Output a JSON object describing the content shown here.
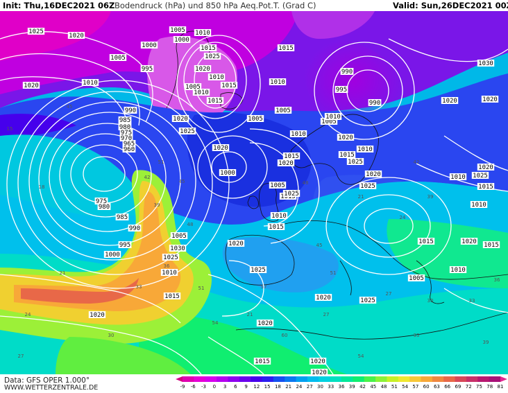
{
  "header": {
    "init": "Init: Thu,16DEC2021 06Z",
    "title": "Bodendruck (hPa) und 850 hPa Aeq.Pot.T. (Grad C)",
    "valid": "Valid: Sun,26DEC2021 00Z"
  },
  "footer": {
    "data_source": "Data: GFS OPER 1.000°",
    "website": "WWW.WETTERZENTRALE.DE"
  },
  "legend": {
    "ticks": [
      "-9",
      "-6",
      "-3",
      "0",
      "3",
      "6",
      "9",
      "12",
      "15",
      "18",
      "21",
      "24",
      "27",
      "30",
      "33",
      "36",
      "39",
      "42",
      "45",
      "48",
      "51",
      "54",
      "57",
      "60",
      "63",
      "66",
      "69",
      "72",
      "75",
      "78",
      "81"
    ],
    "colors": [
      "#d3007f",
      "#e000b0",
      "#e600d6",
      "#d600ee",
      "#b400f0",
      "#8e00f0",
      "#6a00ee",
      "#4600ec",
      "#2a1ef0",
      "#1450f0",
      "#0a78f0",
      "#00a0f0",
      "#00bcee",
      "#00d2e0",
      "#00e0c0",
      "#00e89a",
      "#10ee70",
      "#4af24a",
      "#8cf238",
      "#c8f028",
      "#f0e830",
      "#f8c838",
      "#f8a838",
      "#f08840",
      "#e86848",
      "#d84858",
      "#c83068",
      "#b81870",
      "#a81078",
      "#e02890"
    ]
  },
  "map": {
    "isobar_labels": [
      "1025",
      "1020",
      "1005",
      "1000",
      "995",
      "1010",
      "1020",
      "990",
      "985",
      "980",
      "975",
      "970",
      "965",
      "960",
      "975",
      "980",
      "985",
      "990",
      "995",
      "1000",
      "1005",
      "1010",
      "1015",
      "1020",
      "1005",
      "1000",
      "1010",
      "1015",
      "1025",
      "1020",
      "1010",
      "1015",
      "1005",
      "1010",
      "1015",
      "1020",
      "1025",
      "1015",
      "1010",
      "1005",
      "995",
      "990",
      "990",
      "1015",
      "1030",
      "1020",
      "1020",
      "1005",
      "1010",
      "1015",
      "1020",
      "1025",
      "1000",
      "1005",
      "1010",
      "1015",
      "1025",
      "1020",
      "1010",
      "1005",
      "1005",
      "1010",
      "1015",
      "1020",
      "1025",
      "1020",
      "1015",
      "1010",
      "1010",
      "1015",
      "1025",
      "1020",
      "1020",
      "1020",
      "1025",
      "1030",
      "1020",
      "1020",
      "1010",
      "1015",
      "1025",
      "1020",
      "1015",
      "1020",
      "1025"
    ],
    "temp_labels": [
      "15",
      "18",
      "21",
      "24",
      "27",
      "30",
      "33",
      "36",
      "39",
      "42",
      "45",
      "48",
      "51",
      "54",
      "57",
      "60",
      "21",
      "24",
      "27",
      "30",
      "33",
      "36",
      "39",
      "42",
      "45",
      "48",
      "51",
      "54",
      "21",
      "27",
      "33",
      "39",
      "45",
      "51"
    ]
  }
}
